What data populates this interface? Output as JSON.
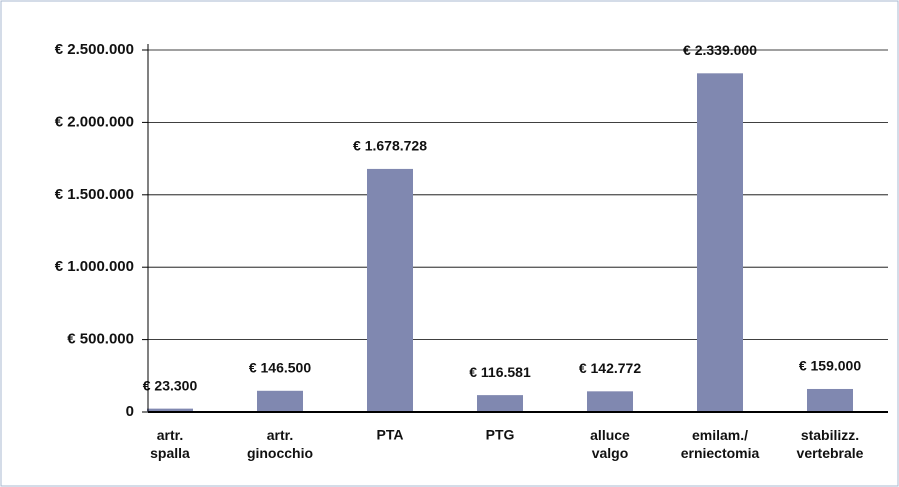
{
  "chart_data": {
    "type": "bar",
    "categories": [
      "artr. spalla",
      "artr. ginocchio",
      "PTA",
      "PTG",
      "alluce valgo",
      "emilam./ erniectomia",
      "stabilizz. vertebrale"
    ],
    "values": [
      23300,
      146500,
      1678728,
      116581,
      142772,
      2339000,
      159000
    ],
    "value_labels": [
      "€ 23.300",
      "€ 146.500",
      "€ 1.678.728",
      "€ 116.581",
      "€ 142.772",
      "€ 2.339.000",
      "€ 159.000"
    ],
    "color": "#8088b0",
    "ylim": [
      0,
      2500000
    ],
    "yticks": [
      0,
      {
        "value": 500000,
        "label": "€ 500.000"
      },
      {
        "value": 1000000,
        "label": "€ 1.000.000"
      },
      {
        "value": 1500000,
        "label": "€ 1.500.000"
      },
      {
        "value": 2000000,
        "label": "€ 2.000.000"
      },
      {
        "value": 2500000,
        "label": "€ 2.500.000"
      }
    ],
    "grid": true
  }
}
